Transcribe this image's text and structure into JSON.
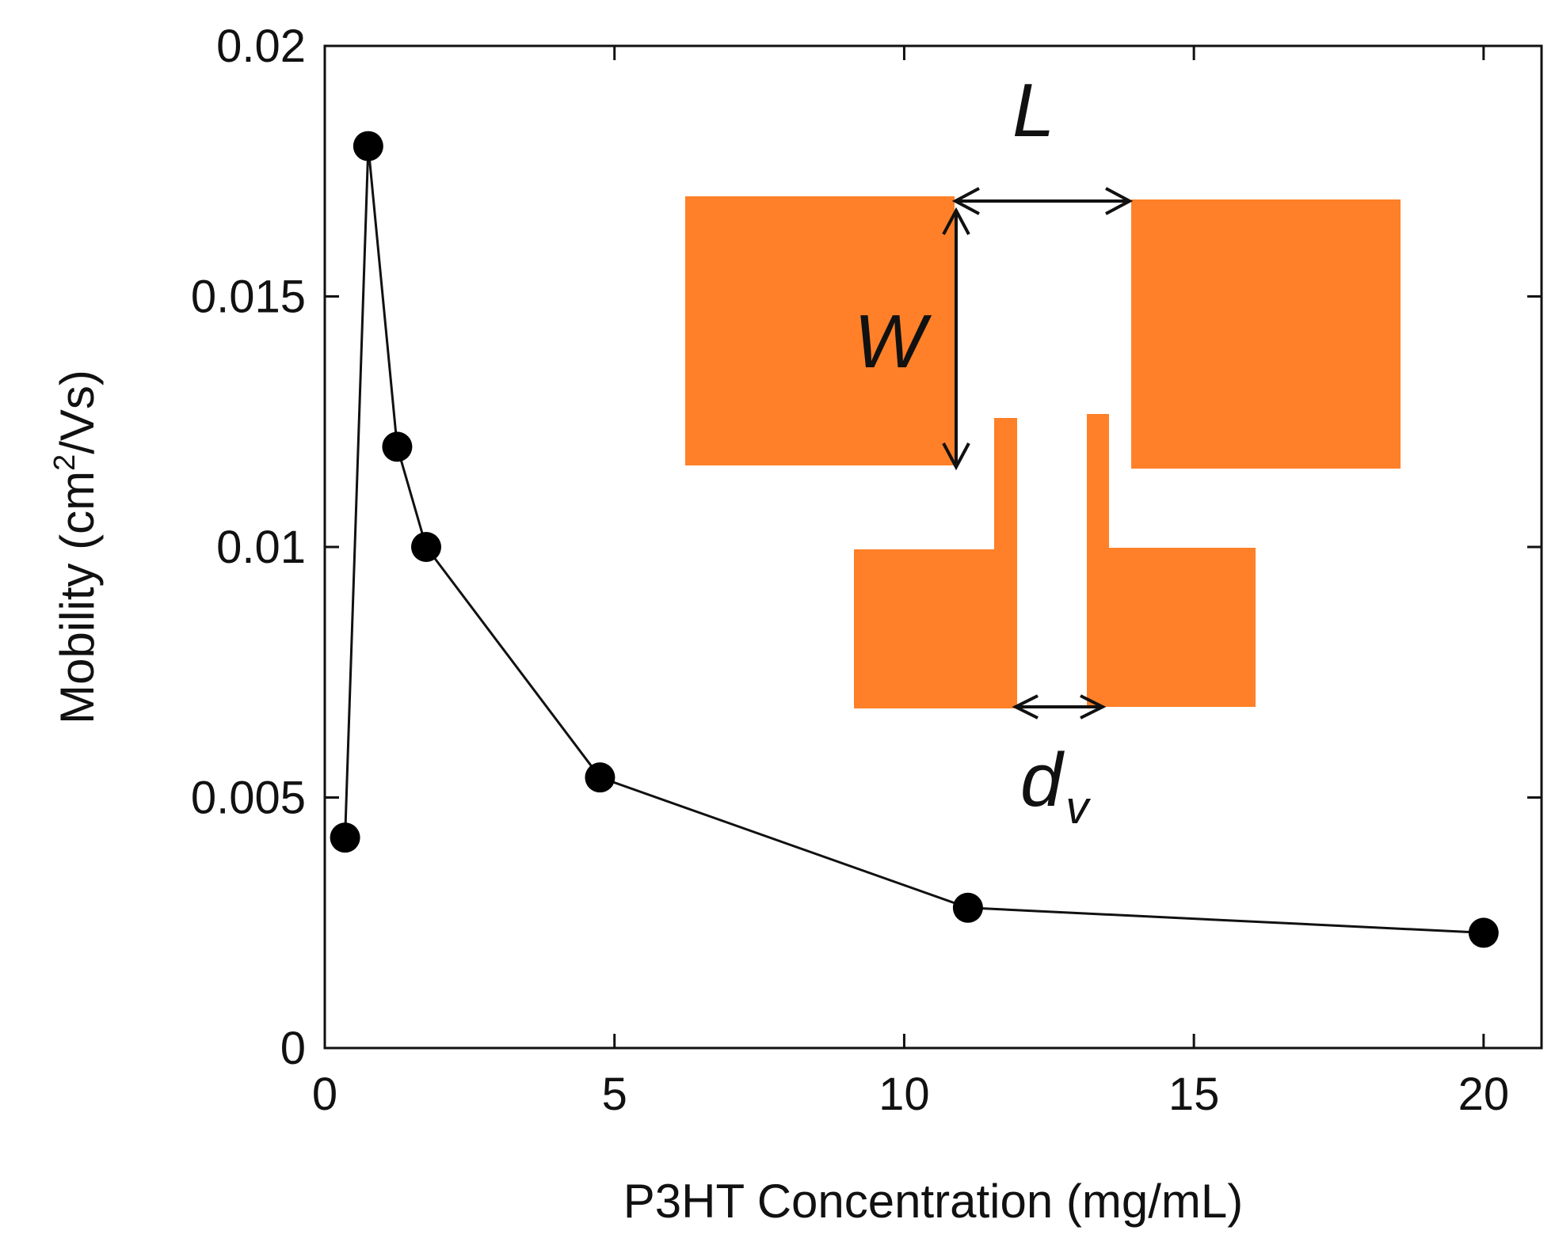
{
  "chart_data": {
    "type": "line",
    "title": "",
    "xlabel": "P3HT Concentration (mg/mL)",
    "ylabel": {
      "prefix": "Mobility (cm",
      "superscript": "2",
      "suffix": "/Vs)"
    },
    "xlim": [
      0,
      21
    ],
    "ylim": [
      0,
      0.02
    ],
    "xticks": [
      0,
      5,
      10,
      15,
      20
    ],
    "xtick_labels": [
      "0",
      "5",
      "10",
      "15",
      "20"
    ],
    "yticks": [
      0,
      0.005,
      0.01,
      0.015,
      0.02
    ],
    "ytick_labels": [
      "0",
      "0.005",
      "0.01",
      "0.015",
      "0.02"
    ],
    "grid": false,
    "series": [
      {
        "name": "Mobility",
        "marker": "circle",
        "color": "#000000",
        "x": [
          0.35,
          0.75,
          1.25,
          1.75,
          4.75,
          11.1,
          20.0
        ],
        "y": [
          0.0042,
          0.018,
          0.012,
          0.01,
          0.0054,
          0.0028,
          0.0023
        ]
      }
    ],
    "inset": {
      "description_color": "#ff8028",
      "labels": {
        "L": "L",
        "W": "W",
        "dv_main": "d",
        "dv_sub": "v"
      }
    }
  }
}
